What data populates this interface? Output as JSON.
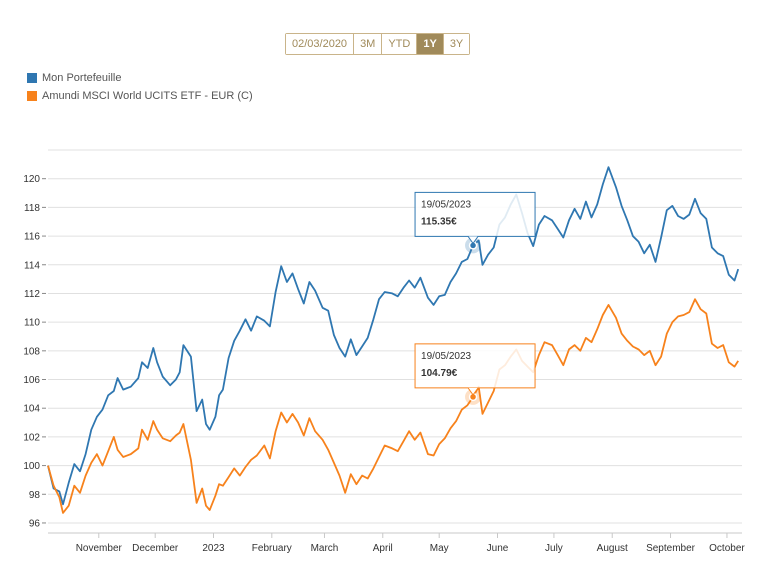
{
  "range_selector": {
    "date_value": "02/03/2020",
    "buttons": [
      {
        "label": "3M",
        "active": false
      },
      {
        "label": "YTD",
        "active": false
      },
      {
        "label": "1Y",
        "active": true
      },
      {
        "label": "3Y",
        "active": false
      }
    ]
  },
  "colors": {
    "series_1": "#2f77b1",
    "series_2": "#f7821c",
    "grid": "#e0e0e0",
    "accent": "#a08a5a"
  },
  "chart_data": {
    "type": "line",
    "title": "",
    "xlabel": "",
    "ylabel": "",
    "ylim": [
      95.3,
      122
    ],
    "yticks": [
      96,
      98,
      100,
      102,
      104,
      106,
      108,
      110,
      112,
      114,
      116,
      118,
      120
    ],
    "ytick_labels": [
      "96",
      "98",
      "100",
      "102",
      "104",
      "106",
      "108",
      "110",
      "112",
      "114",
      "116",
      "118",
      "120"
    ],
    "xlim": [
      "2022-10-05",
      "2023-10-09"
    ],
    "xticks": [
      {
        "date": "2022-11-01",
        "label": "November"
      },
      {
        "date": "2022-12-01",
        "label": "December"
      },
      {
        "date": "2023-01-01",
        "label": "2023"
      },
      {
        "date": "2023-02-01",
        "label": "February"
      },
      {
        "date": "2023-03-01",
        "label": "March"
      },
      {
        "date": "2023-04-01",
        "label": "April"
      },
      {
        "date": "2023-05-01",
        "label": "May"
      },
      {
        "date": "2023-06-01",
        "label": "June"
      },
      {
        "date": "2023-07-01",
        "label": "July"
      },
      {
        "date": "2023-08-01",
        "label": "August"
      },
      {
        "date": "2023-09-01",
        "label": "September"
      },
      {
        "date": "2023-10-01",
        "label": "October"
      }
    ],
    "legend_position": "top-left",
    "grid": true,
    "series": [
      {
        "name": "Mon Portefeuille",
        "points": [
          [
            "2022-10-05",
            100.0
          ],
          [
            "2022-10-08",
            98.4
          ],
          [
            "2022-10-11",
            98.2
          ],
          [
            "2022-10-13",
            97.3
          ],
          [
            "2022-10-16",
            98.8
          ],
          [
            "2022-10-19",
            100.1
          ],
          [
            "2022-10-22",
            99.6
          ],
          [
            "2022-10-25",
            100.8
          ],
          [
            "2022-10-28",
            102.5
          ],
          [
            "2022-10-31",
            103.4
          ],
          [
            "2022-11-03",
            103.9
          ],
          [
            "2022-11-06",
            104.9
          ],
          [
            "2022-11-09",
            105.2
          ],
          [
            "2022-11-11",
            106.1
          ],
          [
            "2022-11-14",
            105.3
          ],
          [
            "2022-11-18",
            105.5
          ],
          [
            "2022-11-22",
            106.1
          ],
          [
            "2022-11-24",
            107.2
          ],
          [
            "2022-11-27",
            106.8
          ],
          [
            "2022-11-30",
            108.2
          ],
          [
            "2022-12-02",
            107.2
          ],
          [
            "2022-12-05",
            106.2
          ],
          [
            "2022-12-09",
            105.6
          ],
          [
            "2022-12-12",
            106.0
          ],
          [
            "2022-12-14",
            106.5
          ],
          [
            "2022-12-16",
            108.4
          ],
          [
            "2022-12-20",
            107.6
          ],
          [
            "2022-12-23",
            103.8
          ],
          [
            "2022-12-26",
            104.6
          ],
          [
            "2022-12-28",
            102.9
          ],
          [
            "2022-12-30",
            102.5
          ],
          [
            "2023-01-02",
            103.4
          ],
          [
            "2023-01-04",
            104.9
          ],
          [
            "2023-01-06",
            105.3
          ],
          [
            "2023-01-09",
            107.5
          ],
          [
            "2023-01-12",
            108.7
          ],
          [
            "2023-01-15",
            109.4
          ],
          [
            "2023-01-18",
            110.2
          ],
          [
            "2023-01-21",
            109.4
          ],
          [
            "2023-01-24",
            110.4
          ],
          [
            "2023-01-28",
            110.1
          ],
          [
            "2023-01-31",
            109.7
          ],
          [
            "2023-02-03",
            112.1
          ],
          [
            "2023-02-06",
            113.9
          ],
          [
            "2023-02-09",
            112.8
          ],
          [
            "2023-02-12",
            113.4
          ],
          [
            "2023-02-15",
            112.3
          ],
          [
            "2023-02-18",
            111.3
          ],
          [
            "2023-02-21",
            112.8
          ],
          [
            "2023-02-24",
            112.2
          ],
          [
            "2023-02-28",
            111.0
          ],
          [
            "2023-03-03",
            110.8
          ],
          [
            "2023-03-06",
            109.1
          ],
          [
            "2023-03-09",
            108.2
          ],
          [
            "2023-03-12",
            107.6
          ],
          [
            "2023-03-15",
            108.8
          ],
          [
            "2023-03-18",
            107.7
          ],
          [
            "2023-03-21",
            108.3
          ],
          [
            "2023-03-24",
            108.9
          ],
          [
            "2023-03-27",
            110.2
          ],
          [
            "2023-03-30",
            111.6
          ],
          [
            "2023-04-02",
            112.1
          ],
          [
            "2023-04-06",
            112.0
          ],
          [
            "2023-04-09",
            111.8
          ],
          [
            "2023-04-12",
            112.4
          ],
          [
            "2023-04-15",
            112.9
          ],
          [
            "2023-04-18",
            112.4
          ],
          [
            "2023-04-21",
            113.1
          ],
          [
            "2023-04-25",
            111.7
          ],
          [
            "2023-04-28",
            111.2
          ],
          [
            "2023-05-01",
            111.8
          ],
          [
            "2023-05-04",
            111.9
          ],
          [
            "2023-05-07",
            112.8
          ],
          [
            "2023-05-10",
            113.4
          ],
          [
            "2023-05-13",
            114.2
          ],
          [
            "2023-05-16",
            114.4
          ],
          [
            "2023-05-19",
            115.35
          ],
          [
            "2023-05-22",
            115.7
          ],
          [
            "2023-05-24",
            114.0
          ],
          [
            "2023-05-27",
            114.7
          ],
          [
            "2023-05-30",
            115.2
          ],
          [
            "2023-06-02",
            116.8
          ],
          [
            "2023-06-05",
            117.3
          ],
          [
            "2023-06-08",
            118.2
          ],
          [
            "2023-06-11",
            118.9
          ],
          [
            "2023-06-14",
            117.6
          ],
          [
            "2023-06-17",
            116.2
          ],
          [
            "2023-06-20",
            115.3
          ],
          [
            "2023-06-23",
            116.8
          ],
          [
            "2023-06-26",
            117.4
          ],
          [
            "2023-06-30",
            117.1
          ],
          [
            "2023-07-03",
            116.5
          ],
          [
            "2023-07-06",
            115.9
          ],
          [
            "2023-07-09",
            117.1
          ],
          [
            "2023-07-12",
            117.9
          ],
          [
            "2023-07-15",
            117.2
          ],
          [
            "2023-07-18",
            118.4
          ],
          [
            "2023-07-21",
            117.3
          ],
          [
            "2023-07-24",
            118.2
          ],
          [
            "2023-07-27",
            119.6
          ],
          [
            "2023-07-30",
            120.8
          ],
          [
            "2023-08-03",
            119.4
          ],
          [
            "2023-08-06",
            118.1
          ],
          [
            "2023-08-09",
            117.1
          ],
          [
            "2023-08-12",
            116.0
          ],
          [
            "2023-08-15",
            115.6
          ],
          [
            "2023-08-18",
            114.8
          ],
          [
            "2023-08-21",
            115.4
          ],
          [
            "2023-08-24",
            114.2
          ],
          [
            "2023-08-27",
            115.9
          ],
          [
            "2023-08-30",
            117.8
          ],
          [
            "2023-09-02",
            118.1
          ],
          [
            "2023-09-05",
            117.4
          ],
          [
            "2023-09-08",
            117.2
          ],
          [
            "2023-09-11",
            117.5
          ],
          [
            "2023-09-14",
            118.6
          ],
          [
            "2023-09-17",
            117.6
          ],
          [
            "2023-09-20",
            117.2
          ],
          [
            "2023-09-23",
            115.2
          ],
          [
            "2023-09-26",
            114.8
          ],
          [
            "2023-09-29",
            114.6
          ],
          [
            "2023-10-02",
            113.3
          ],
          [
            "2023-10-05",
            112.9
          ],
          [
            "2023-10-07",
            113.7
          ]
        ]
      },
      {
        "name": "Amundi MSCI World UCITS ETF - EUR (C)",
        "points": [
          [
            "2022-10-05",
            100.0
          ],
          [
            "2022-10-08",
            98.6
          ],
          [
            "2022-10-11",
            97.8
          ],
          [
            "2022-10-13",
            96.7
          ],
          [
            "2022-10-16",
            97.2
          ],
          [
            "2022-10-19",
            98.6
          ],
          [
            "2022-10-22",
            98.1
          ],
          [
            "2022-10-25",
            99.3
          ],
          [
            "2022-10-28",
            100.2
          ],
          [
            "2022-10-31",
            100.8
          ],
          [
            "2022-11-03",
            100.0
          ],
          [
            "2022-11-06",
            101.0
          ],
          [
            "2022-11-09",
            102.0
          ],
          [
            "2022-11-11",
            101.1
          ],
          [
            "2022-11-14",
            100.6
          ],
          [
            "2022-11-18",
            100.8
          ],
          [
            "2022-11-22",
            101.2
          ],
          [
            "2022-11-24",
            102.5
          ],
          [
            "2022-11-27",
            101.8
          ],
          [
            "2022-11-30",
            103.1
          ],
          [
            "2022-12-02",
            102.5
          ],
          [
            "2022-12-05",
            101.9
          ],
          [
            "2022-12-09",
            101.7
          ],
          [
            "2022-12-12",
            102.1
          ],
          [
            "2022-12-14",
            102.3
          ],
          [
            "2022-12-16",
            102.9
          ],
          [
            "2022-12-20",
            100.4
          ],
          [
            "2022-12-23",
            97.4
          ],
          [
            "2022-12-26",
            98.4
          ],
          [
            "2022-12-28",
            97.2
          ],
          [
            "2022-12-30",
            96.9
          ],
          [
            "2023-01-02",
            97.9
          ],
          [
            "2023-01-04",
            98.7
          ],
          [
            "2023-01-06",
            98.6
          ],
          [
            "2023-01-09",
            99.2
          ],
          [
            "2023-01-12",
            99.8
          ],
          [
            "2023-01-15",
            99.3
          ],
          [
            "2023-01-18",
            99.9
          ],
          [
            "2023-01-21",
            100.4
          ],
          [
            "2023-01-24",
            100.7
          ],
          [
            "2023-01-28",
            101.4
          ],
          [
            "2023-01-31",
            100.5
          ],
          [
            "2023-02-03",
            102.4
          ],
          [
            "2023-02-06",
            103.7
          ],
          [
            "2023-02-09",
            103.0
          ],
          [
            "2023-02-12",
            103.6
          ],
          [
            "2023-02-15",
            103.0
          ],
          [
            "2023-02-18",
            102.1
          ],
          [
            "2023-02-21",
            103.3
          ],
          [
            "2023-02-24",
            102.4
          ],
          [
            "2023-02-28",
            101.8
          ],
          [
            "2023-03-03",
            101.1
          ],
          [
            "2023-03-06",
            100.2
          ],
          [
            "2023-03-09",
            99.3
          ],
          [
            "2023-03-12",
            98.1
          ],
          [
            "2023-03-15",
            99.4
          ],
          [
            "2023-03-18",
            98.7
          ],
          [
            "2023-03-21",
            99.3
          ],
          [
            "2023-03-24",
            99.1
          ],
          [
            "2023-03-27",
            99.8
          ],
          [
            "2023-03-30",
            100.6
          ],
          [
            "2023-04-02",
            101.4
          ],
          [
            "2023-04-06",
            101.2
          ],
          [
            "2023-04-09",
            101.0
          ],
          [
            "2023-04-12",
            101.7
          ],
          [
            "2023-04-15",
            102.4
          ],
          [
            "2023-04-18",
            101.8
          ],
          [
            "2023-04-21",
            102.3
          ],
          [
            "2023-04-25",
            100.8
          ],
          [
            "2023-04-28",
            100.7
          ],
          [
            "2023-05-01",
            101.5
          ],
          [
            "2023-05-04",
            101.9
          ],
          [
            "2023-05-07",
            102.6
          ],
          [
            "2023-05-10",
            103.1
          ],
          [
            "2023-05-13",
            103.9
          ],
          [
            "2023-05-16",
            104.2
          ],
          [
            "2023-05-19",
            104.79
          ],
          [
            "2023-05-22",
            105.5
          ],
          [
            "2023-05-24",
            103.6
          ],
          [
            "2023-05-27",
            104.4
          ],
          [
            "2023-05-30",
            105.2
          ],
          [
            "2023-06-02",
            106.7
          ],
          [
            "2023-06-05",
            107.0
          ],
          [
            "2023-06-08",
            107.6
          ],
          [
            "2023-06-11",
            108.1
          ],
          [
            "2023-06-14",
            107.3
          ],
          [
            "2023-06-17",
            106.9
          ],
          [
            "2023-06-20",
            106.5
          ],
          [
            "2023-06-23",
            107.7
          ],
          [
            "2023-06-26",
            108.6
          ],
          [
            "2023-06-30",
            108.4
          ],
          [
            "2023-07-03",
            107.7
          ],
          [
            "2023-07-06",
            107.0
          ],
          [
            "2023-07-09",
            108.1
          ],
          [
            "2023-07-12",
            108.4
          ],
          [
            "2023-07-15",
            108.0
          ],
          [
            "2023-07-18",
            108.9
          ],
          [
            "2023-07-21",
            108.6
          ],
          [
            "2023-07-24",
            109.5
          ],
          [
            "2023-07-27",
            110.5
          ],
          [
            "2023-07-30",
            111.2
          ],
          [
            "2023-08-03",
            110.3
          ],
          [
            "2023-08-06",
            109.2
          ],
          [
            "2023-08-09",
            108.7
          ],
          [
            "2023-08-12",
            108.3
          ],
          [
            "2023-08-15",
            108.1
          ],
          [
            "2023-08-18",
            107.7
          ],
          [
            "2023-08-21",
            108.0
          ],
          [
            "2023-08-24",
            107.0
          ],
          [
            "2023-08-27",
            107.6
          ],
          [
            "2023-08-30",
            109.2
          ],
          [
            "2023-09-02",
            110.0
          ],
          [
            "2023-09-05",
            110.4
          ],
          [
            "2023-09-08",
            110.5
          ],
          [
            "2023-09-11",
            110.7
          ],
          [
            "2023-09-14",
            111.6
          ],
          [
            "2023-09-17",
            110.9
          ],
          [
            "2023-09-20",
            110.6
          ],
          [
            "2023-09-23",
            108.5
          ],
          [
            "2023-09-26",
            108.2
          ],
          [
            "2023-09-29",
            108.4
          ],
          [
            "2023-10-02",
            107.2
          ],
          [
            "2023-10-05",
            106.9
          ],
          [
            "2023-10-07",
            107.3
          ]
        ]
      }
    ],
    "tooltips": [
      {
        "date_text": "19/05/2023",
        "value_text": "115.35€",
        "date": "2023-05-19",
        "value": 115.35,
        "series": 0
      },
      {
        "date_text": "19/05/2023",
        "value_text": "104.79€",
        "date": "2023-05-19",
        "value": 104.79,
        "series": 1
      }
    ]
  }
}
